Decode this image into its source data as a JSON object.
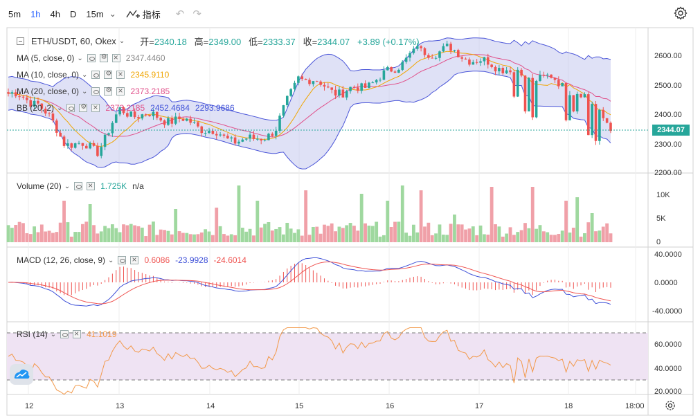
{
  "toolbar": {
    "timeframes": [
      "5m",
      "1h",
      "4h",
      "D",
      "15m"
    ],
    "active_timeframe": "1h",
    "indicators_label": "指标"
  },
  "symbol": {
    "name": "ETH/USDT, 60, Okex",
    "open_label": "开",
    "open": "2340.18",
    "high_label": "高",
    "high": "2349.00",
    "low_label": "低",
    "low": "2333.37",
    "close_label": "收",
    "close": "2344.07",
    "change": "+3.89 (+0.17%)"
  },
  "legends": {
    "ma5": {
      "name": "MA (5, close, 0)",
      "value": "2347.4460",
      "color": "#888888"
    },
    "ma10": {
      "name": "MA (10, close, 0)",
      "value": "2345.9110",
      "color": "#f0a500"
    },
    "ma20": {
      "name": "MA (20, close, 0)",
      "value": "2373.2185",
      "color": "#e0508a"
    },
    "bb": {
      "name": "BB (20, 2)",
      "v1": "2373.2185",
      "v2": "2452.4684",
      "v3": "2293.9686"
    },
    "volume": {
      "name": "Volume (20)",
      "v1": "1.725K",
      "v2": "n/a"
    },
    "macd": {
      "name": "MACD (12, 26, close, 9)",
      "v1": "0.6086",
      "v2": "-23.9928",
      "v3": "-24.6014"
    },
    "rsi": {
      "name": "RSI (14)",
      "value": "41.1019"
    }
  },
  "price_axis": {
    "labels": [
      "2600.00",
      "2500.00",
      "2400.00",
      "2300.00",
      "2200.00"
    ],
    "current": "2344.07"
  },
  "volume_axis": {
    "labels": [
      "10K",
      "5K",
      "0"
    ]
  },
  "macd_axis": {
    "labels": [
      "40.0000",
      "0.0000",
      "-40.0000"
    ]
  },
  "rsi_axis": {
    "labels": [
      "60.0000",
      "40.0000",
      "20.0000"
    ]
  },
  "time_axis": {
    "labels": [
      "12",
      "13",
      "14",
      "15",
      "16",
      "17",
      "18",
      "18:00"
    ]
  },
  "colors": {
    "up": "#26a69a",
    "down": "#ef5350",
    "up_bar": "#9fd89f",
    "down_bar": "#f0a0a8",
    "bb_fill": "#c5c9ee",
    "bb_line": "#4a55d8",
    "macd_line": "#3f51d8",
    "signal_line": "#ef5350",
    "rsi_line": "#f2994a",
    "rsi_band": "#efe3f3"
  }
}
